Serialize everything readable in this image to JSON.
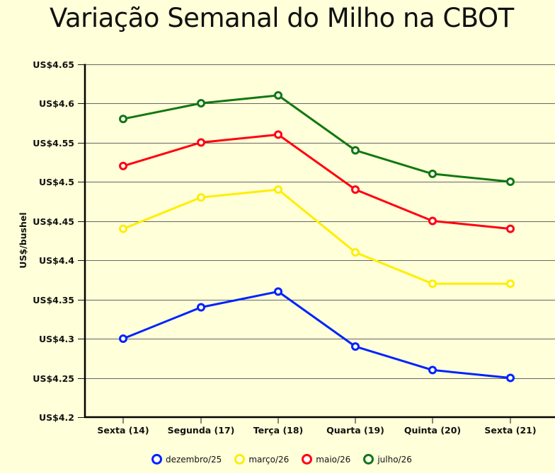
{
  "title": "Variação Semanal do Milho na CBOT",
  "chart_data": {
    "type": "line",
    "title": "Variação Semanal do Milho na CBOT",
    "xlabel": "",
    "ylabel": "US$/bushel",
    "ylim": [
      4.2,
      4.65
    ],
    "yticks": [
      4.2,
      4.25,
      4.3,
      4.35,
      4.4,
      4.45,
      4.5,
      4.55,
      4.6,
      4.65
    ],
    "ytick_labels": [
      "US$4.2",
      "US$4.25",
      "US$4.3",
      "US$4.35",
      "US$4.4",
      "US$4.45",
      "US$4.5",
      "US$4.55",
      "US$4.6",
      "US$4.65"
    ],
    "categories": [
      "Sexta (14)",
      "Segunda (17)",
      "Terça (18)",
      "Quarta (19)",
      "Quinta (20)",
      "Sexta (21)"
    ],
    "grid": true,
    "legend_position": "bottom",
    "series": [
      {
        "name": "dezembro/25",
        "color": "#0022ff",
        "values": [
          4.3,
          4.34,
          4.36,
          4.29,
          4.26,
          4.25
        ]
      },
      {
        "name": "março/26",
        "color": "#ffee00",
        "values": [
          4.44,
          4.48,
          4.49,
          4.41,
          4.37,
          4.37
        ]
      },
      {
        "name": "maio/26",
        "color": "#ff0011",
        "values": [
          4.52,
          4.55,
          4.56,
          4.49,
          4.45,
          4.44
        ]
      },
      {
        "name": "julho/26",
        "color": "#117711",
        "values": [
          4.58,
          4.6,
          4.61,
          4.54,
          4.51,
          4.5
        ]
      }
    ]
  }
}
